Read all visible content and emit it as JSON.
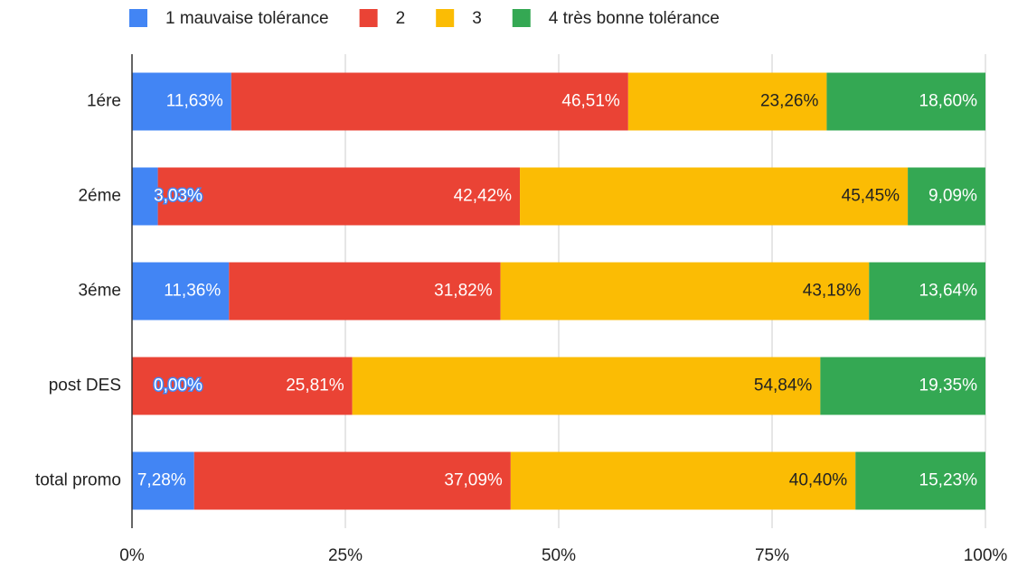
{
  "chart_data": {
    "type": "stacked_bar_horizontal",
    "categories": [
      "1ére",
      "2éme",
      "3éme",
      "post DES",
      "total promo"
    ],
    "series": [
      {
        "name": "1 mauvaise tolérance",
        "color": "#4285f4",
        "values": [
          11.63,
          3.03,
          11.36,
          0,
          7.28
        ],
        "value_labels": [
          "11,63%",
          "3,03%",
          "11,36%",
          "0,00%",
          "7,28%"
        ]
      },
      {
        "name": "2",
        "color": "#ea4335",
        "values": [
          46.51,
          42.42,
          31.82,
          25.81,
          37.09
        ],
        "value_labels": [
          "46,51%",
          "42,42%",
          "31,82%",
          "25,81%",
          "37,09%"
        ]
      },
      {
        "name": "3",
        "color": "#fbbc04",
        "values": [
          23.26,
          45.45,
          43.18,
          54.84,
          40.4
        ],
        "value_labels": [
          "23,26%",
          "45,45%",
          "43,18%",
          "54,84%",
          "40,40%"
        ]
      },
      {
        "name": "4 très bonne tolérance",
        "color": "#34a853",
        "values": [
          18.6,
          9.09,
          13.64,
          19.35,
          15.23
        ],
        "value_labels": [
          "18,60%",
          "9,09%",
          "13,64%",
          "19,35%",
          "15,23%"
        ]
      }
    ],
    "xlim": [
      0,
      100
    ],
    "xticks": [
      {
        "value": 0,
        "label": "0%"
      },
      {
        "value": 25,
        "label": "25%"
      },
      {
        "value": 50,
        "label": "50%"
      },
      {
        "value": 75,
        "label": "75%"
      },
      {
        "value": 100,
        "label": "100%"
      }
    ],
    "grid": true,
    "legend": "top"
  }
}
